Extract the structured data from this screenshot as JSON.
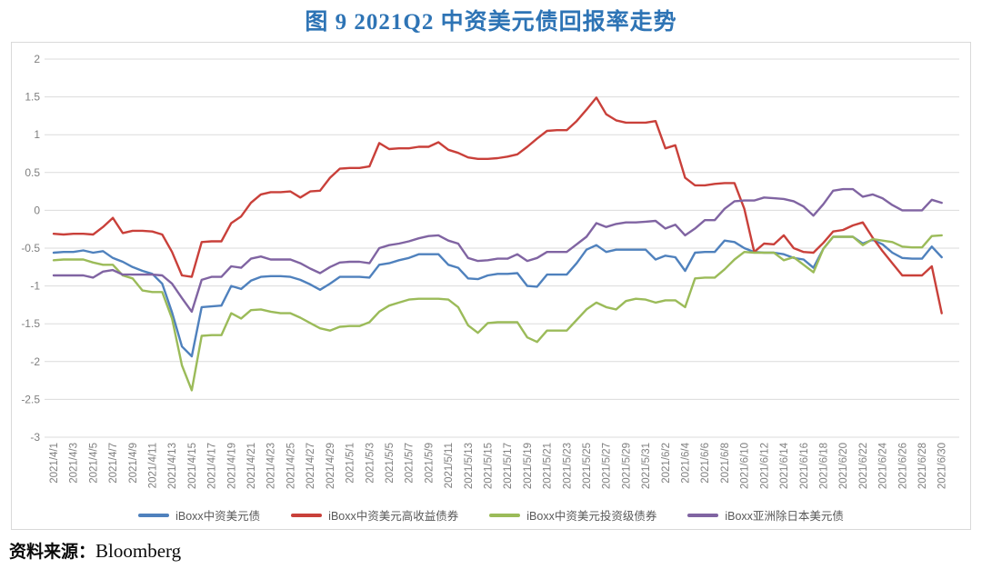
{
  "title": "图 9  2021Q2 中资美元债回报率走势",
  "source": {
    "prefix": "资料来源：",
    "name": "Bloomberg"
  },
  "chart_data": {
    "type": "line",
    "title": "图 9  2021Q2 中资美元债回报率走势",
    "xlabel": "",
    "ylabel": "",
    "ylim": [
      -3,
      2
    ],
    "grid": "horizontal",
    "legend_position": "bottom",
    "y_ticks": [
      2,
      1.5,
      1,
      0.5,
      0,
      -0.5,
      -1,
      -1.5,
      -2,
      -2.5,
      -3
    ],
    "days_per_tick": 2,
    "x_tick_labels": [
      "2021/4/1",
      "2021/4/3",
      "2021/4/5",
      "2021/4/7",
      "2021/4/9",
      "2021/4/11",
      "2021/4/13",
      "2021/4/15",
      "2021/4/17",
      "2021/4/19",
      "2021/4/21",
      "2021/4/23",
      "2021/4/25",
      "2021/4/27",
      "2021/4/29",
      "2021/5/1",
      "2021/5/3",
      "2021/5/5",
      "2021/5/7",
      "2021/5/9",
      "2021/5/11",
      "2021/5/13",
      "2021/5/15",
      "2021/5/17",
      "2021/5/19",
      "2021/5/21",
      "2021/5/23",
      "2021/5/25",
      "2021/5/27",
      "2021/5/29",
      "2021/5/31",
      "2021/6/2",
      "2021/6/4",
      "2021/6/6",
      "2021/6/8",
      "2021/6/10",
      "2021/6/12",
      "2021/6/14",
      "2021/6/16",
      "2021/6/18",
      "2021/6/20",
      "2021/6/22",
      "2021/6/24",
      "2021/6/26",
      "2021/6/28",
      "2021/6/30"
    ],
    "x_note": "daily values from 2021/4/1 (index 0) to 2021/6/30 (index 90)",
    "series": [
      {
        "name": "iBoxx中资美元债",
        "color": "#4F81BD",
        "values": [
          -0.56,
          -0.55,
          -0.55,
          -0.53,
          -0.56,
          -0.54,
          -0.63,
          -0.68,
          -0.75,
          -0.8,
          -0.84,
          -0.97,
          -1.35,
          -1.8,
          -1.93,
          -1.28,
          -1.27,
          -1.26,
          -1.0,
          -1.04,
          -0.93,
          -0.88,
          -0.87,
          -0.87,
          -0.88,
          -0.92,
          -0.98,
          -1.05,
          -0.97,
          -0.88,
          -0.88,
          -0.88,
          -0.89,
          -0.72,
          -0.7,
          -0.66,
          -0.63,
          -0.58,
          -0.58,
          -0.58,
          -0.72,
          -0.76,
          -0.9,
          -0.91,
          -0.86,
          -0.84,
          -0.84,
          -0.83,
          -1.0,
          -1.01,
          -0.85,
          -0.85,
          -0.85,
          -0.7,
          -0.52,
          -0.46,
          -0.55,
          -0.52,
          -0.52,
          -0.52,
          -0.52,
          -0.65,
          -0.6,
          -0.62,
          -0.8,
          -0.56,
          -0.55,
          -0.55,
          -0.4,
          -0.42,
          -0.5,
          -0.55,
          -0.56,
          -0.56,
          -0.58,
          -0.63,
          -0.65,
          -0.76,
          -0.51,
          -0.35,
          -0.35,
          -0.35,
          -0.44,
          -0.39,
          -0.45,
          -0.56,
          -0.63,
          -0.64,
          -0.64,
          -0.48,
          -0.62
        ]
      },
      {
        "name": "iBoxx中资美元高收益债券",
        "color": "#C9403A",
        "values": [
          -0.31,
          -0.32,
          -0.31,
          -0.31,
          -0.32,
          -0.22,
          -0.1,
          -0.3,
          -0.27,
          -0.27,
          -0.28,
          -0.32,
          -0.55,
          -0.86,
          -0.88,
          -0.42,
          -0.41,
          -0.41,
          -0.17,
          -0.08,
          0.1,
          0.21,
          0.24,
          0.24,
          0.25,
          0.17,
          0.25,
          0.26,
          0.43,
          0.55,
          0.56,
          0.56,
          0.58,
          0.89,
          0.81,
          0.82,
          0.82,
          0.84,
          0.84,
          0.9,
          0.8,
          0.76,
          0.7,
          0.68,
          0.68,
          0.69,
          0.71,
          0.74,
          0.84,
          0.95,
          1.05,
          1.06,
          1.06,
          1.18,
          1.33,
          1.49,
          1.27,
          1.19,
          1.16,
          1.16,
          1.16,
          1.18,
          0.82,
          0.86,
          0.43,
          0.33,
          0.33,
          0.35,
          0.36,
          0.36,
          0.02,
          -0.55,
          -0.44,
          -0.45,
          -0.33,
          -0.5,
          -0.55,
          -0.56,
          -0.43,
          -0.28,
          -0.26,
          -0.2,
          -0.16,
          -0.36,
          -0.54,
          -0.7,
          -0.86,
          -0.86,
          -0.86,
          -0.74,
          -1.36
        ]
      },
      {
        "name": "iBoxx中资美元投资级债券",
        "color": "#9BBB59",
        "values": [
          -0.66,
          -0.65,
          -0.65,
          -0.65,
          -0.69,
          -0.72,
          -0.72,
          -0.86,
          -0.9,
          -1.06,
          -1.08,
          -1.08,
          -1.43,
          -2.05,
          -2.38,
          -1.66,
          -1.65,
          -1.65,
          -1.36,
          -1.43,
          -1.32,
          -1.31,
          -1.34,
          -1.36,
          -1.36,
          -1.42,
          -1.49,
          -1.56,
          -1.59,
          -1.54,
          -1.53,
          -1.53,
          -1.48,
          -1.34,
          -1.26,
          -1.22,
          -1.18,
          -1.17,
          -1.17,
          -1.17,
          -1.18,
          -1.28,
          -1.52,
          -1.62,
          -1.49,
          -1.48,
          -1.48,
          -1.48,
          -1.68,
          -1.74,
          -1.59,
          -1.59,
          -1.59,
          -1.45,
          -1.31,
          -1.22,
          -1.28,
          -1.31,
          -1.2,
          -1.17,
          -1.18,
          -1.22,
          -1.19,
          -1.19,
          -1.28,
          -0.9,
          -0.89,
          -0.89,
          -0.78,
          -0.65,
          -0.55,
          -0.56,
          -0.56,
          -0.56,
          -0.66,
          -0.62,
          -0.72,
          -0.82,
          -0.51,
          -0.35,
          -0.35,
          -0.35,
          -0.46,
          -0.38,
          -0.4,
          -0.42,
          -0.48,
          -0.49,
          -0.49,
          -0.34,
          -0.33
        ]
      },
      {
        "name": "iBoxx亚洲除日本美元债",
        "color": "#8064A2",
        "values": [
          -0.86,
          -0.86,
          -0.86,
          -0.86,
          -0.89,
          -0.81,
          -0.79,
          -0.85,
          -0.85,
          -0.85,
          -0.85,
          -0.86,
          -0.97,
          -1.16,
          -1.34,
          -0.92,
          -0.88,
          -0.88,
          -0.74,
          -0.76,
          -0.64,
          -0.61,
          -0.65,
          -0.65,
          -0.65,
          -0.7,
          -0.77,
          -0.83,
          -0.75,
          -0.69,
          -0.68,
          -0.68,
          -0.7,
          -0.5,
          -0.46,
          -0.44,
          -0.41,
          -0.37,
          -0.34,
          -0.33,
          -0.4,
          -0.44,
          -0.63,
          -0.67,
          -0.66,
          -0.64,
          -0.64,
          -0.58,
          -0.67,
          -0.63,
          -0.55,
          -0.55,
          -0.55,
          -0.45,
          -0.35,
          -0.17,
          -0.22,
          -0.18,
          -0.16,
          -0.16,
          -0.15,
          -0.14,
          -0.24,
          -0.19,
          -0.33,
          -0.24,
          -0.13,
          -0.13,
          0.02,
          0.12,
          0.13,
          0.13,
          0.17,
          0.16,
          0.15,
          0.12,
          0.05,
          -0.07,
          0.08,
          0.26,
          0.28,
          0.28,
          0.18,
          0.21,
          0.16,
          0.07,
          0.0,
          0.0,
          0.0,
          0.14,
          0.1
        ]
      }
    ]
  }
}
